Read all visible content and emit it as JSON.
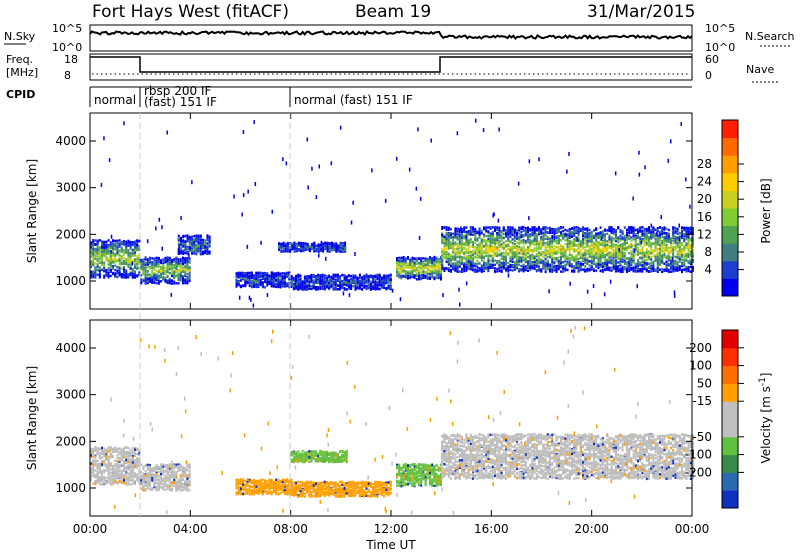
{
  "header": {
    "radar": "Fort Hays West (fitACF)",
    "beam": "Beam 19",
    "date": "31/Mar/2015"
  },
  "top_panels": {
    "nsky_label": "N.Sky",
    "nsky_ticks": [
      "10^5",
      "10^0"
    ],
    "nsearch_label": "N.Search",
    "nsearch_ticks": [
      "10^5",
      "10^0"
    ],
    "freq_label_1": "Freq.",
    "freq_label_2": "[MHz]",
    "freq_ticks": [
      "18",
      "8"
    ],
    "nave_label": "Nave",
    "nave_ticks": [
      "60",
      "0"
    ],
    "cpid_label": "CPID",
    "cpid_segments": [
      {
        "start_hour": 0,
        "text": "normal"
      },
      {
        "start_hour": 2,
        "text": "rbsp 200 IF"
      },
      {
        "start_hour": 2,
        "text": "(fast) 151 IF"
      },
      {
        "start_hour": 8,
        "text": "normal (fast) 151 IF"
      }
    ]
  },
  "chart_data": [
    {
      "type": "heatmap",
      "panel": "power",
      "ylabel": "Slant Range [km]",
      "xlabel": "",
      "x_ticks": [
        "00:00",
        "04:00",
        "08:00",
        "12:00",
        "16:00",
        "20:00",
        "00:00"
      ],
      "y_ticks": [
        "1000",
        "2000",
        "3000",
        "4000"
      ],
      "ylim": [
        400,
        4600
      ],
      "xlim_hours": [
        0,
        24
      ],
      "colorbar": {
        "label": "Power [dB]",
        "ticks": [
          "4",
          "8",
          "12",
          "16",
          "20",
          "24",
          "28"
        ],
        "colors": [
          "#0000ee",
          "#1c3fd0",
          "#3f7f7f",
          "#4fa24f",
          "#7fcc33",
          "#c8d020",
          "#ffcc00",
          "#ffa000",
          "#ff6a00",
          "#ff2000"
        ]
      },
      "echo_regions": [
        {
          "t0": 0.0,
          "t1": 1.95,
          "r_center": 1500,
          "r_width": 500,
          "level": 0.5
        },
        {
          "t0": 2.0,
          "t1": 4.0,
          "r_center": 1250,
          "r_width": 350,
          "level": 0.45
        },
        {
          "t0": 3.5,
          "t1": 4.8,
          "r_center": 1800,
          "r_width": 250,
          "level": 0.25
        },
        {
          "t0": 5.8,
          "t1": 8.0,
          "r_center": 1050,
          "r_width": 200,
          "level": 0.15
        },
        {
          "t0": 7.5,
          "t1": 10.2,
          "r_center": 1750,
          "r_width": 120,
          "level": 0.15
        },
        {
          "t0": 8.0,
          "t1": 12.0,
          "r_center": 1000,
          "r_width": 200,
          "level": 0.15
        },
        {
          "t0": 12.2,
          "t1": 14.0,
          "r_center": 1300,
          "r_width": 300,
          "level": 0.6
        },
        {
          "t0": 14.0,
          "t1": 24.0,
          "r_center": 1700,
          "r_width": 600,
          "level": 0.55
        }
      ]
    },
    {
      "type": "heatmap",
      "panel": "velocity",
      "ylabel": "Slant Range [km]",
      "xlabel": "Time UT",
      "x_ticks": [
        "00:00",
        "04:00",
        "08:00",
        "12:00",
        "16:00",
        "20:00",
        "00:00"
      ],
      "y_ticks": [
        "1000",
        "2000",
        "3000",
        "4000"
      ],
      "ylim": [
        400,
        4600
      ],
      "xlim_hours": [
        0,
        24
      ],
      "colorbar": {
        "label": "Velocity [m s^-1]",
        "unit_parts": [
          "Velocity [m s",
          "-1",
          "]"
        ],
        "ticks": [
          "200",
          "100",
          "50",
          "-15",
          "-50",
          "-100",
          "-200"
        ],
        "colors": [
          "#1030c0",
          "#2a6ab0",
          "#3a8a4a",
          "#60c040",
          "#bfbfbf",
          "#bfbfbf",
          "#ffa000",
          "#ff7000",
          "#ff3000",
          "#e00000"
        ]
      },
      "echo_regions": [
        {
          "t0": 0.0,
          "t1": 1.95,
          "r_center": 1500,
          "r_width": 500,
          "color": "gray"
        },
        {
          "t0": 2.0,
          "t1": 4.0,
          "r_center": 1250,
          "r_width": 350,
          "color": "gray"
        },
        {
          "t0": 5.8,
          "t1": 8.0,
          "r_center": 1050,
          "r_width": 200,
          "color": "orange"
        },
        {
          "t0": 8.0,
          "t1": 10.2,
          "r_center": 1700,
          "r_width": 150,
          "color": "green"
        },
        {
          "t0": 8.0,
          "t1": 12.0,
          "r_center": 1000,
          "r_width": 200,
          "color": "orange"
        },
        {
          "t0": 12.2,
          "t1": 14.0,
          "r_center": 1300,
          "r_width": 300,
          "color": "green"
        },
        {
          "t0": 14.0,
          "t1": 24.0,
          "r_center": 1700,
          "r_width": 600,
          "color": "gray"
        }
      ]
    }
  ]
}
